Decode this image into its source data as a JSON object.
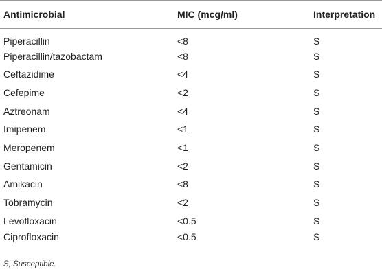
{
  "table": {
    "headers": [
      "Antimicrobial",
      "MIC (mcg/ml)",
      "Interpretation"
    ],
    "rows": [
      {
        "antimicrobial": "Piperacillin",
        "mic": "<8",
        "interpretation": "S"
      },
      {
        "antimicrobial": "Piperacillin/tazobactam",
        "mic": "<8",
        "interpretation": "S"
      },
      {
        "antimicrobial": "Ceftazidime",
        "mic": "<4",
        "interpretation": "S"
      },
      {
        "antimicrobial": "Cefepime",
        "mic": "<2",
        "interpretation": "S"
      },
      {
        "antimicrobial": "Aztreonam",
        "mic": "<4",
        "interpretation": "S"
      },
      {
        "antimicrobial": "Imipenem",
        "mic": "<1",
        "interpretation": "S"
      },
      {
        "antimicrobial": "Meropenem",
        "mic": "<1",
        "interpretation": "S"
      },
      {
        "antimicrobial": "Gentamicin",
        "mic": "<2",
        "interpretation": "S"
      },
      {
        "antimicrobial": "Amikacin",
        "mic": "<8",
        "interpretation": "S"
      },
      {
        "antimicrobial": "Tobramycin",
        "mic": "<2",
        "interpretation": "S"
      },
      {
        "antimicrobial": "Levofloxacin",
        "mic": "<0.5",
        "interpretation": "S"
      },
      {
        "antimicrobial": "Ciprofloxacin",
        "mic": "<0.5",
        "interpretation": "S"
      }
    ]
  },
  "footnote": "S, Susceptible."
}
